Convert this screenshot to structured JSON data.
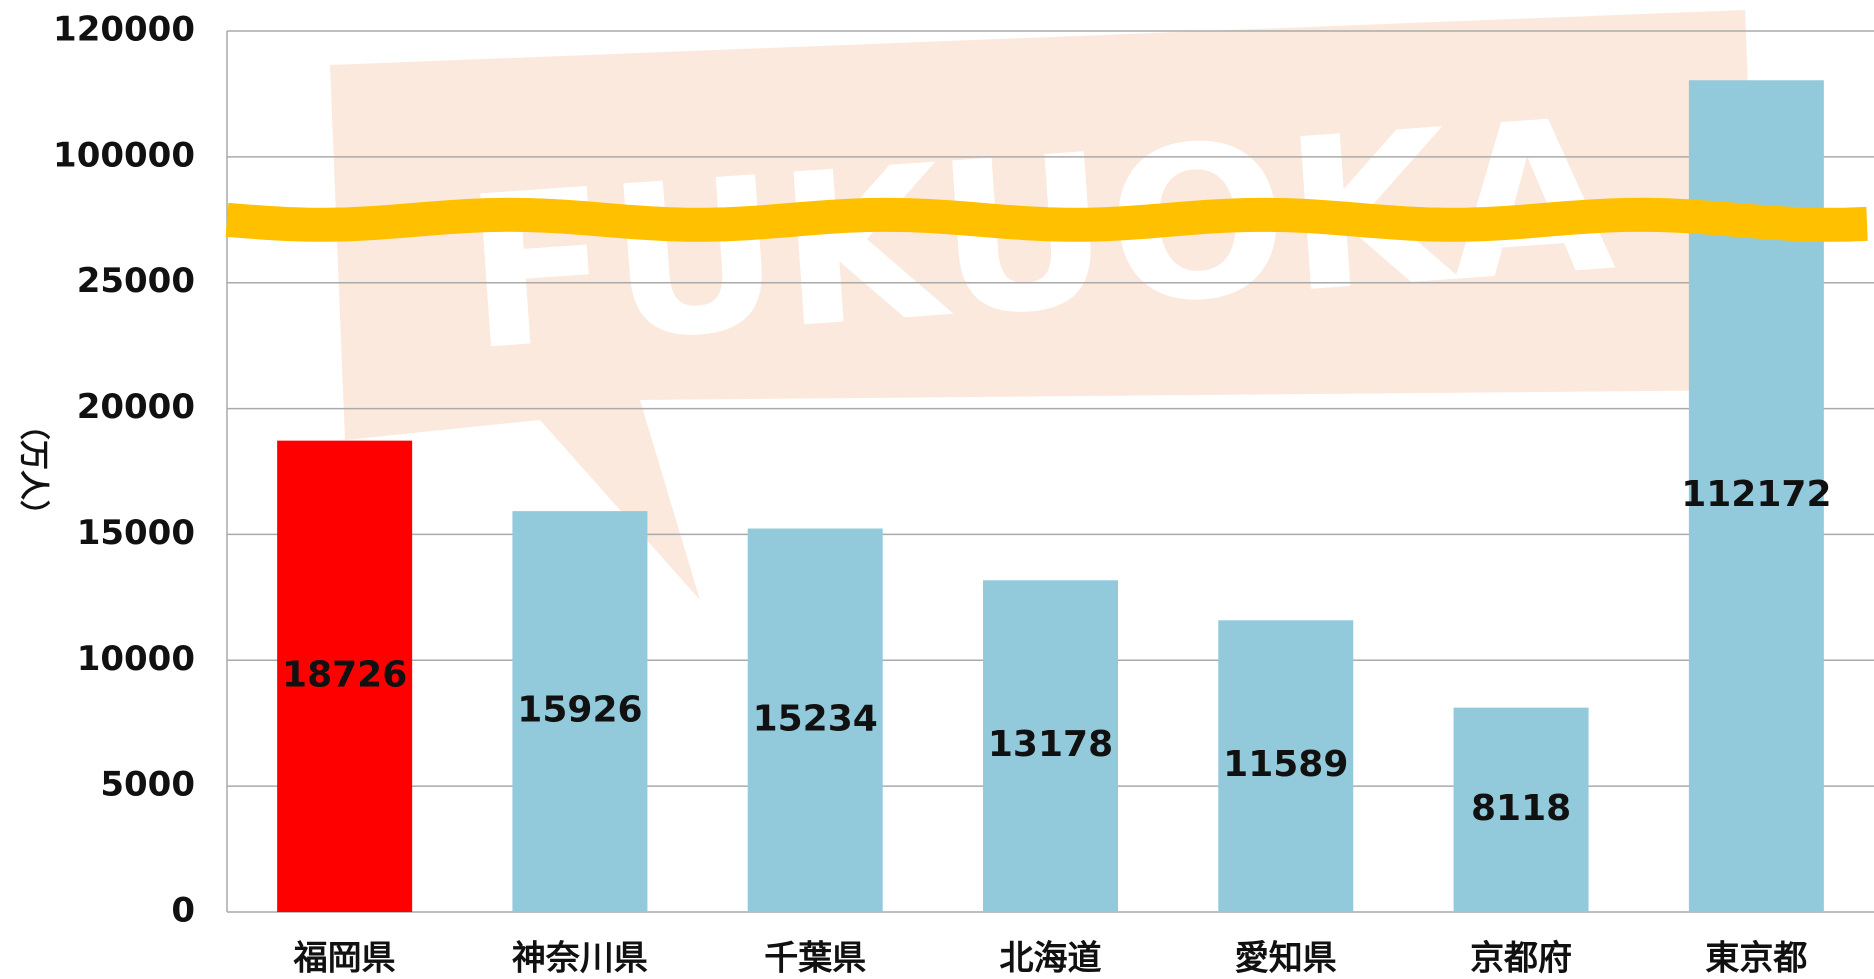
{
  "chart_data": {
    "type": "bar",
    "background_text": "FUKUOKA",
    "y_label": "（万人）",
    "categories": [
      "福岡県",
      "神奈川県",
      "千葉県",
      "北海道",
      "愛知県",
      "京都府",
      "東京都"
    ],
    "values": [
      18726,
      15926,
      15234,
      13178,
      11589,
      8118,
      112172
    ],
    "colors": [
      "#ff0000",
      "#92cadc",
      "#92cadc",
      "#92cadc",
      "#92cadc",
      "#92cadc",
      "#92cadc"
    ],
    "ylim": [
      0,
      120000
    ],
    "yticks": [
      0,
      5000,
      10000,
      15000,
      20000,
      25000,
      100000,
      120000
    ],
    "grid": true
  }
}
